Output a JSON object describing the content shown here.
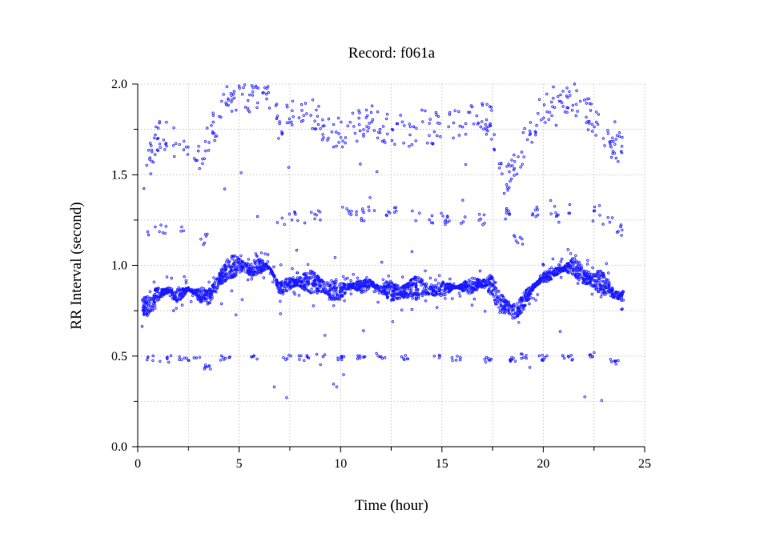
{
  "chart_data": {
    "type": "scatter",
    "title": "Record:  f061a",
    "xlabel": "Time (hour)",
    "ylabel": "RR Interval (second)",
    "xlim": [
      0,
      25
    ],
    "ylim": [
      0,
      2.0
    ],
    "xticks": [
      0,
      5,
      10,
      15,
      20,
      25
    ],
    "xtick_labels": [
      "0",
      "5",
      "10",
      "15",
      "20",
      "25"
    ],
    "yticks": [
      0.0,
      0.5,
      1.0,
      1.5,
      2.0
    ],
    "ytick_labels": [
      "0.0",
      "0.5",
      "1.0",
      "1.5",
      "2.0"
    ],
    "grid": true,
    "legend": "none",
    "marker_color": "#1818ff",
    "marker": "open-circle",
    "series": [
      {
        "values_note": "",
        "main_band": [
          [
            0.2,
            0.77
          ],
          [
            0.5,
            0.78
          ],
          [
            1.0,
            0.84
          ],
          [
            1.5,
            0.86
          ],
          [
            2.0,
            0.83
          ],
          [
            2.5,
            0.87
          ],
          [
            3.0,
            0.84
          ],
          [
            3.5,
            0.82
          ],
          [
            4.0,
            0.92
          ],
          [
            4.5,
            0.99
          ],
          [
            5.0,
            1.0
          ],
          [
            5.5,
            0.98
          ],
          [
            6.0,
            1.0
          ],
          [
            6.5,
            0.99
          ],
          [
            7.0,
            0.87
          ],
          [
            7.5,
            0.9
          ],
          [
            8.0,
            0.91
          ],
          [
            8.5,
            0.91
          ],
          [
            9.0,
            0.89
          ],
          [
            9.5,
            0.86
          ],
          [
            10.0,
            0.86
          ],
          [
            10.5,
            0.89
          ],
          [
            11.0,
            0.88
          ],
          [
            11.5,
            0.9
          ],
          [
            12.0,
            0.87
          ],
          [
            12.5,
            0.86
          ],
          [
            13.0,
            0.85
          ],
          [
            13.5,
            0.87
          ],
          [
            14.0,
            0.88
          ],
          [
            14.5,
            0.86
          ],
          [
            15.0,
            0.87
          ],
          [
            15.5,
            0.88
          ],
          [
            16.0,
            0.88
          ],
          [
            16.5,
            0.89
          ],
          [
            17.0,
            0.9
          ],
          [
            17.5,
            0.89
          ],
          [
            17.8,
            0.8
          ],
          [
            18.2,
            0.77
          ],
          [
            18.6,
            0.75
          ],
          [
            19.0,
            0.8
          ],
          [
            19.5,
            0.88
          ],
          [
            20.0,
            0.93
          ],
          [
            20.5,
            0.96
          ],
          [
            21.0,
            0.98
          ],
          [
            21.5,
            1.0
          ],
          [
            22.0,
            0.94
          ],
          [
            22.5,
            0.92
          ],
          [
            23.0,
            0.9
          ],
          [
            23.5,
            0.84
          ],
          [
            23.9,
            0.83
          ]
        ],
        "upper_band": [
          [
            0.3,
            1.5
          ],
          [
            0.6,
            1.58
          ],
          [
            1.0,
            1.72
          ],
          [
            1.5,
            1.7
          ],
          [
            2.0,
            1.65
          ],
          [
            2.5,
            1.66
          ],
          [
            3.0,
            1.62
          ],
          [
            3.5,
            1.7
          ],
          [
            4.0,
            1.82
          ],
          [
            4.5,
            1.92
          ],
          [
            5.0,
            1.94
          ],
          [
            5.5,
            1.93
          ],
          [
            6.0,
            1.9
          ],
          [
            6.5,
            1.93
          ],
          [
            7.0,
            1.75
          ],
          [
            7.5,
            1.82
          ],
          [
            8.0,
            1.84
          ],
          [
            8.5,
            1.84
          ],
          [
            9.0,
            1.78
          ],
          [
            9.5,
            1.74
          ],
          [
            10.0,
            1.72
          ],
          [
            10.5,
            1.79
          ],
          [
            11.0,
            1.76
          ],
          [
            11.5,
            1.8
          ],
          [
            12.0,
            1.76
          ],
          [
            12.5,
            1.75
          ],
          [
            13.0,
            1.76
          ],
          [
            13.5,
            1.74
          ],
          [
            14.0,
            1.77
          ],
          [
            14.5,
            1.76
          ],
          [
            15.0,
            1.75
          ],
          [
            15.5,
            1.77
          ],
          [
            16.0,
            1.78
          ],
          [
            16.5,
            1.8
          ],
          [
            17.0,
            1.82
          ],
          [
            17.5,
            1.78
          ],
          [
            18.0,
            1.45
          ],
          [
            18.5,
            1.55
          ],
          [
            19.0,
            1.65
          ],
          [
            19.5,
            1.78
          ],
          [
            20.0,
            1.86
          ],
          [
            20.5,
            1.9
          ],
          [
            21.0,
            1.93
          ],
          [
            21.5,
            1.92
          ],
          [
            22.0,
            1.86
          ],
          [
            22.5,
            1.8
          ],
          [
            23.0,
            1.74
          ],
          [
            23.5,
            1.66
          ],
          [
            23.9,
            1.66
          ]
        ],
        "mid_band": [
          [
            0.7,
            1.18
          ],
          [
            1.3,
            1.2
          ],
          [
            2.3,
            1.2
          ],
          [
            3.2,
            1.14
          ],
          [
            7.0,
            1.26
          ],
          [
            7.7,
            1.26
          ],
          [
            8.8,
            1.28
          ],
          [
            10.3,
            1.3
          ],
          [
            11.0,
            1.28
          ],
          [
            11.6,
            1.31
          ],
          [
            12.5,
            1.29
          ],
          [
            13.7,
            1.28
          ],
          [
            14.6,
            1.25
          ],
          [
            15.2,
            1.26
          ],
          [
            16.0,
            1.25
          ],
          [
            17.0,
            1.25
          ],
          [
            18.2,
            1.28
          ],
          [
            18.8,
            1.15
          ],
          [
            19.5,
            1.3
          ],
          [
            20.5,
            1.3
          ],
          [
            21.5,
            1.31
          ],
          [
            22.6,
            1.31
          ],
          [
            23.2,
            1.26
          ],
          [
            23.7,
            1.2
          ]
        ],
        "lower_band": [
          [
            0.7,
            0.49
          ],
          [
            1.3,
            0.48
          ],
          [
            2.3,
            0.49
          ],
          [
            3.0,
            0.49
          ],
          [
            3.5,
            0.44
          ],
          [
            4.3,
            0.49
          ],
          [
            5.7,
            0.51
          ],
          [
            7.3,
            0.49
          ],
          [
            8.2,
            0.49
          ],
          [
            9.0,
            0.5
          ],
          [
            10.0,
            0.49
          ],
          [
            11.0,
            0.49
          ],
          [
            12.0,
            0.5
          ],
          [
            13.2,
            0.49
          ],
          [
            14.8,
            0.49
          ],
          [
            15.7,
            0.49
          ],
          [
            17.2,
            0.48
          ],
          [
            18.5,
            0.48
          ],
          [
            19.0,
            0.5
          ],
          [
            20.0,
            0.49
          ],
          [
            21.2,
            0.49
          ],
          [
            22.5,
            0.51
          ],
          [
            23.5,
            0.47
          ]
        ]
      }
    ]
  }
}
